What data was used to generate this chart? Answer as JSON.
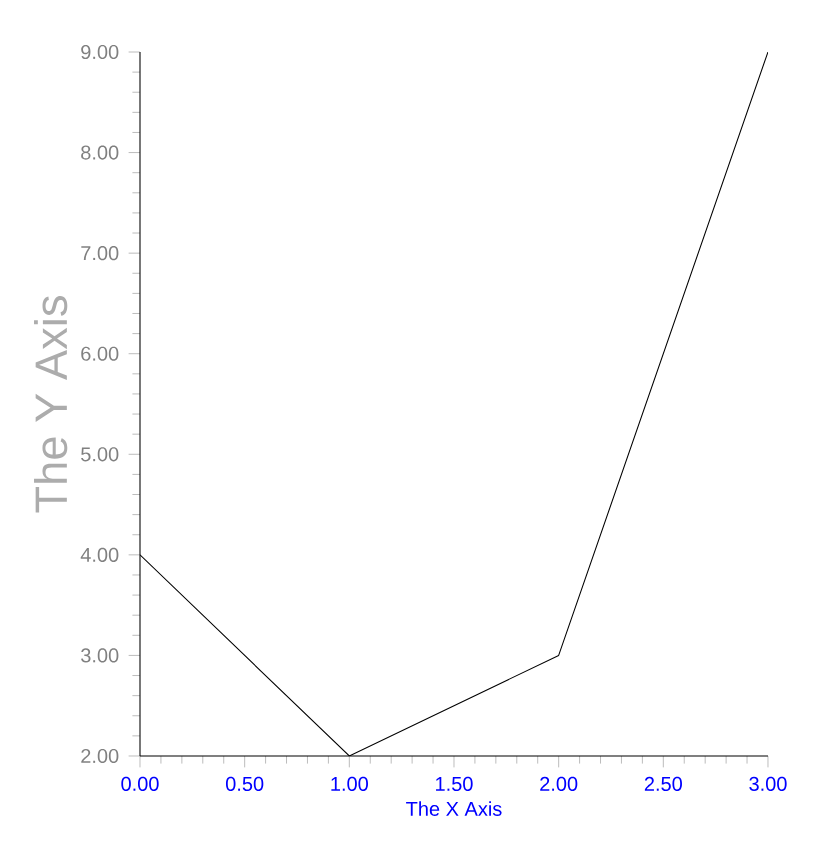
{
  "chart_data": {
    "type": "line",
    "xlabel": "The X Axis",
    "ylabel": "The Y Axis",
    "x": [
      0,
      1,
      2,
      3
    ],
    "values": [
      4,
      2,
      3,
      9
    ],
    "color": "#000000",
    "xlim": [
      0,
      3
    ],
    "ylim": [
      2,
      9
    ],
    "xticks": [
      {
        "value": 0,
        "label": "0.00"
      },
      {
        "value": 0.5,
        "label": "0.50"
      },
      {
        "value": 1,
        "label": "1.00"
      },
      {
        "value": 1.5,
        "label": "1.50"
      },
      {
        "value": 2,
        "label": "2.00"
      },
      {
        "value": 2.5,
        "label": "2.50"
      },
      {
        "value": 3,
        "label": "3.00"
      }
    ],
    "yticks": [
      {
        "value": 2,
        "label": "2.00"
      },
      {
        "value": 3,
        "label": "3.00"
      },
      {
        "value": 4,
        "label": "4.00"
      },
      {
        "value": 5,
        "label": "5.00"
      },
      {
        "value": 6,
        "label": "6.00"
      },
      {
        "value": 7,
        "label": "7.00"
      },
      {
        "value": 8,
        "label": "8.00"
      },
      {
        "value": 9,
        "label": "9.00"
      }
    ],
    "marker": "none",
    "line_style": "solid"
  }
}
